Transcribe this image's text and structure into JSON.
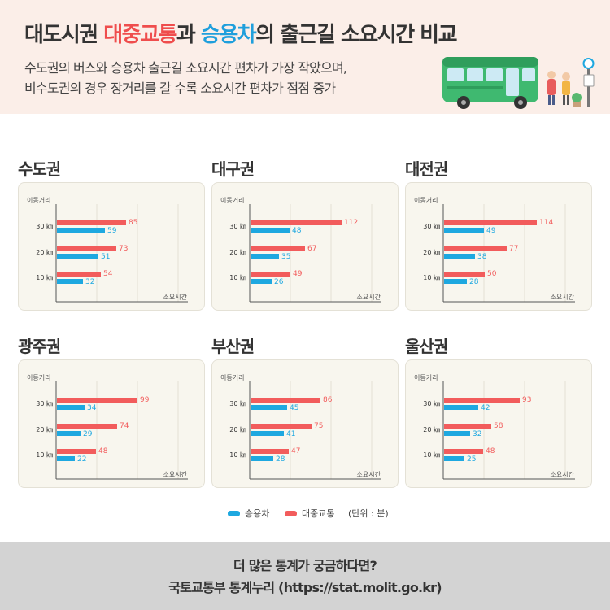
{
  "header": {
    "title_pre": "대도시권 ",
    "title_transit": "대중교통",
    "title_mid": "과 ",
    "title_car": "승용차",
    "title_post": "의 출근길 소요시간 비교",
    "subtitle_line1": "수도권의 버스와 승용차 출근길 소요시간 편차가 가장 작았으며,",
    "subtitle_line2": "비수도권의 경우 장거리를 갈 수록 소요시간 편차가 점점 증가"
  },
  "colors": {
    "transit": "#f25c5c",
    "car": "#1ea8e0",
    "panel_bg": "#f8f6ee",
    "header_bg": "#fbeee8",
    "footer_bg": "#d3d3d3"
  },
  "chart_data": [
    {
      "type": "bar",
      "title": "수도권",
      "ylabel": "이동거리",
      "xlabel": "소요시간",
      "categories": [
        "30 ㎞",
        "20 ㎞",
        "10 ㎞"
      ],
      "series": [
        {
          "name": "대중교통",
          "values": [
            85,
            73,
            54
          ]
        },
        {
          "name": "승용차",
          "values": [
            59,
            51,
            32
          ]
        }
      ]
    },
    {
      "type": "bar",
      "title": "대구권",
      "ylabel": "이동거리",
      "xlabel": "소요시간",
      "categories": [
        "30 ㎞",
        "20 ㎞",
        "10 ㎞"
      ],
      "series": [
        {
          "name": "대중교통",
          "values": [
            112,
            67,
            49
          ]
        },
        {
          "name": "승용차",
          "values": [
            48,
            35,
            26
          ]
        }
      ]
    },
    {
      "type": "bar",
      "title": "대전권",
      "ylabel": "이동거리",
      "xlabel": "소요시간",
      "categories": [
        "30 ㎞",
        "20 ㎞",
        "10 ㎞"
      ],
      "series": [
        {
          "name": "대중교통",
          "values": [
            114,
            77,
            50
          ]
        },
        {
          "name": "승용차",
          "values": [
            49,
            38,
            28
          ]
        }
      ]
    },
    {
      "type": "bar",
      "title": "광주권",
      "ylabel": "이동거리",
      "xlabel": "소요시간",
      "categories": [
        "30 ㎞",
        "20 ㎞",
        "10 ㎞"
      ],
      "series": [
        {
          "name": "대중교통",
          "values": [
            99,
            74,
            48
          ]
        },
        {
          "name": "승용차",
          "values": [
            34,
            29,
            22
          ]
        }
      ]
    },
    {
      "type": "bar",
      "title": "부산권",
      "ylabel": "이동거리",
      "xlabel": "소요시간",
      "categories": [
        "30 ㎞",
        "20 ㎞",
        "10 ㎞"
      ],
      "series": [
        {
          "name": "대중교통",
          "values": [
            86,
            75,
            47
          ]
        },
        {
          "name": "승용차",
          "values": [
            45,
            41,
            28
          ]
        }
      ]
    },
    {
      "type": "bar",
      "title": "울산권",
      "ylabel": "이동거리",
      "xlabel": "소요시간",
      "categories": [
        "30 ㎞",
        "20 ㎞",
        "10 ㎞"
      ],
      "series": [
        {
          "name": "대중교통",
          "values": [
            93,
            58,
            48
          ]
        },
        {
          "name": "승용차",
          "values": [
            42,
            32,
            25
          ]
        }
      ]
    }
  ],
  "legend": {
    "car_label": "승용차",
    "transit_label": "대중교통",
    "unit_label": "(단위 : 분)"
  },
  "footer": {
    "line1": "더 많은 통계가 궁금하다면?",
    "line2": "국토교통부 통계누리 (https://stat.molit.go.kr)"
  }
}
